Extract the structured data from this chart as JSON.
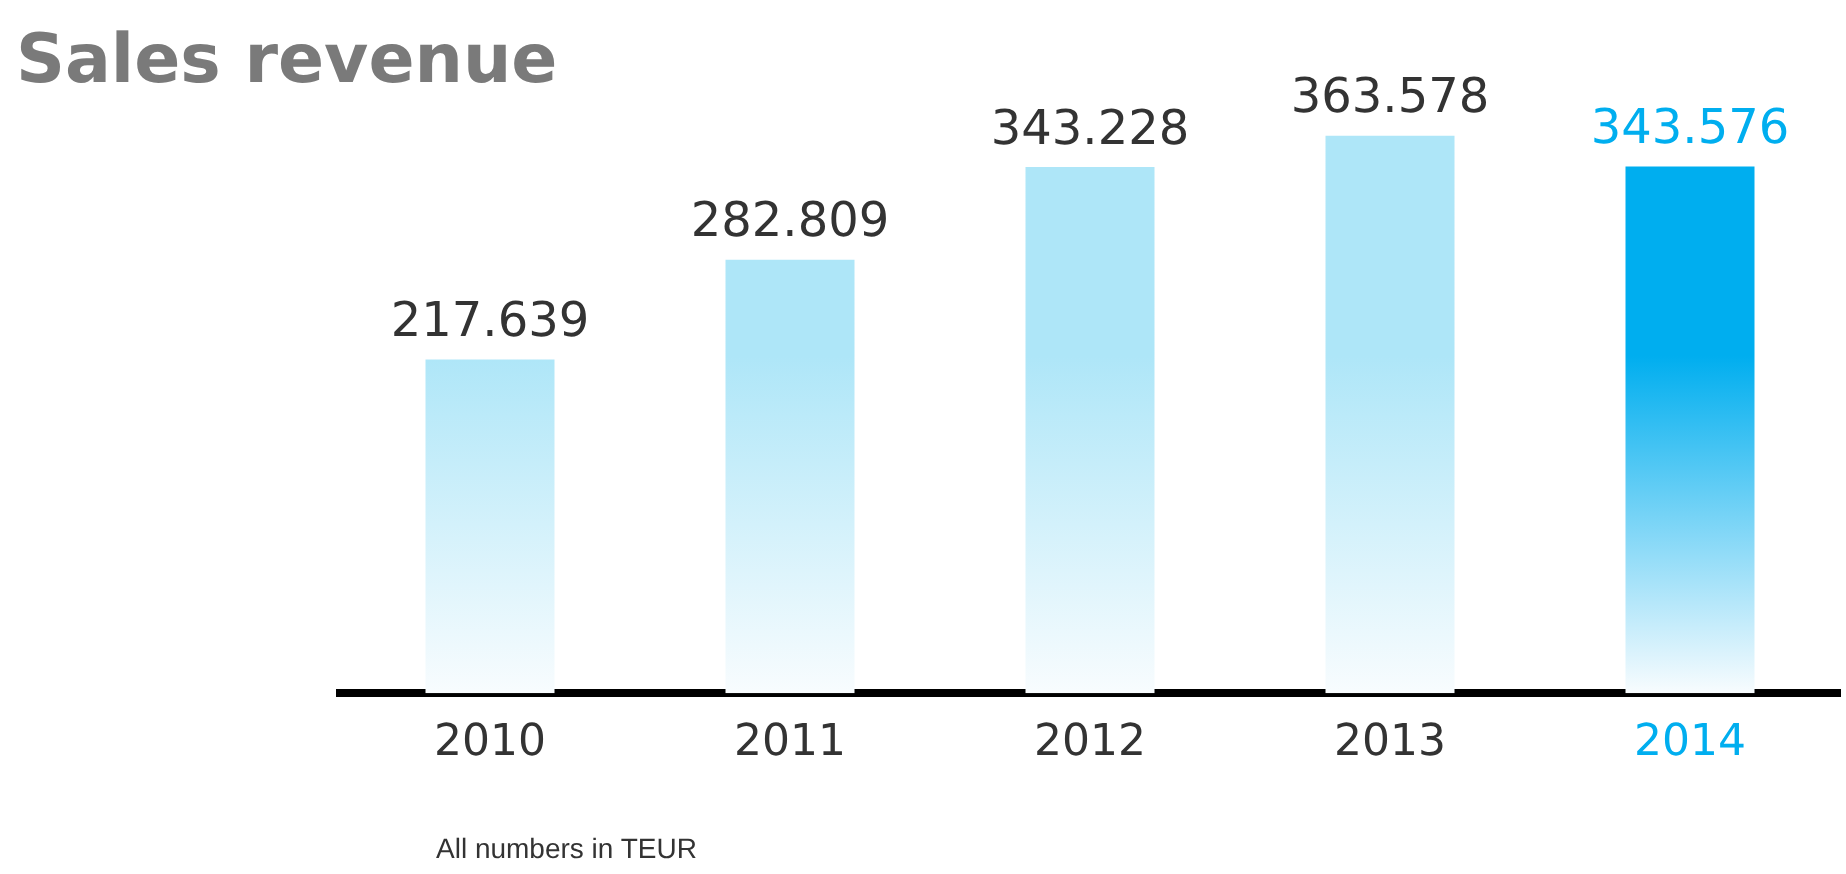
{
  "chart_data": {
    "type": "bar",
    "title": "Sales revenue",
    "categories": [
      "2010",
      "2011",
      "2012",
      "2013",
      "2014"
    ],
    "values": [
      217639,
      282809,
      343228,
      363578,
      343576
    ],
    "value_labels": [
      "217.639",
      "282.809",
      "343.228",
      "363.578",
      "343.576"
    ],
    "colors": [
      "#aee6f8",
      "#aee6f8",
      "#aee6f8",
      "#aee6f8",
      "#00aeef"
    ],
    "annotations": [
      "All numbers in TEUR"
    ],
    "grid": false,
    "legend": false
  }
}
